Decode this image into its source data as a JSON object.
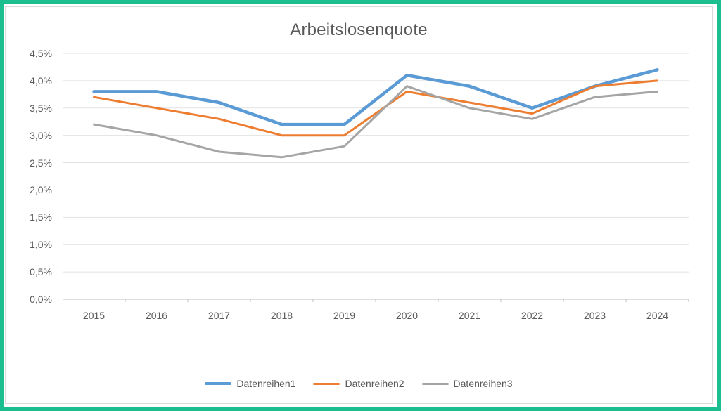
{
  "frame": {
    "outer_border_color": "#1CBE8F",
    "chart_border_color": "#D9D9D9",
    "background": "#FFFFFF"
  },
  "chart_data": {
    "type": "line",
    "title": "Arbeitslosenquote",
    "title_color": "#595959",
    "xlabel": "",
    "ylabel": "",
    "x": [
      "2015",
      "2016",
      "2017",
      "2018",
      "2019",
      "2020",
      "2021",
      "2022",
      "2023",
      "2024"
    ],
    "ylim": [
      0,
      4.5
    ],
    "y_ticks": [
      "0,0%",
      "0,5%",
      "1,0%",
      "1,5%",
      "2,0%",
      "2,5%",
      "3,0%",
      "3,5%",
      "4,0%",
      "4,5%"
    ],
    "grid": true,
    "gridline_color": "#E2E2E2",
    "axis_color": "#BFBFBF",
    "label_color": "#595959",
    "legend_position": "bottom",
    "series": [
      {
        "name": "Datenreihen1",
        "color": "#5B9BD5",
        "stroke_width": 4.5,
        "values": [
          3.8,
          3.8,
          3.6,
          3.2,
          3.2,
          4.1,
          3.9,
          3.5,
          3.9,
          4.2
        ]
      },
      {
        "name": "Datenreihen2",
        "color": "#ED7D31",
        "stroke_width": 3,
        "values": [
          3.7,
          3.5,
          3.3,
          3.0,
          3.0,
          3.8,
          3.6,
          3.4,
          3.9,
          4.0
        ]
      },
      {
        "name": "Datenreihen3",
        "color": "#A5A5A5",
        "stroke_width": 3,
        "values": [
          3.2,
          3.0,
          2.7,
          2.6,
          2.8,
          3.9,
          3.5,
          3.3,
          3.7,
          3.8
        ]
      }
    ]
  }
}
